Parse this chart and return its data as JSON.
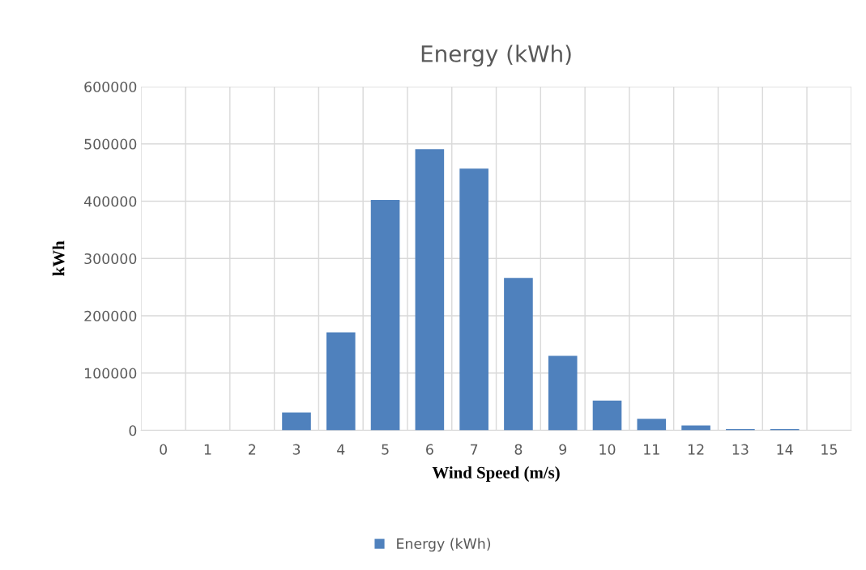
{
  "chart_data": {
    "type": "bar",
    "title": "Energy (kWh)",
    "xlabel": "Wind Speed (m/s)",
    "ylabel": "kWh",
    "categories": [
      "0",
      "1",
      "2",
      "3",
      "4",
      "5",
      "6",
      "7",
      "8",
      "9",
      "10",
      "11",
      "12",
      "13",
      "14",
      "15"
    ],
    "series": [
      {
        "name": "Energy (kWh)",
        "color": "#4f81bd",
        "values": [
          0,
          0,
          0,
          31000,
          171000,
          402000,
          491000,
          457000,
          266000,
          130000,
          52000,
          20000,
          8500,
          2000,
          2000,
          0
        ]
      }
    ],
    "ylim": [
      0,
      600000
    ],
    "yticks": [
      0,
      100000,
      200000,
      300000,
      400000,
      500000,
      600000
    ],
    "grid": true,
    "legend": "bottom"
  }
}
